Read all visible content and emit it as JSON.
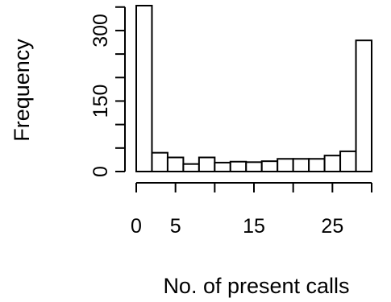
{
  "chart_data": {
    "type": "bar",
    "xlabel": "No. of present calls",
    "ylabel": "Frequency",
    "x_bin_edges": [
      0,
      2,
      4,
      6,
      8,
      10,
      12,
      14,
      16,
      18,
      20,
      22,
      24,
      26,
      28,
      30
    ],
    "values": [
      353,
      40,
      30,
      16,
      30,
      19,
      21,
      20,
      22,
      27,
      27,
      27,
      34,
      43,
      279
    ],
    "xlim": [
      0,
      30
    ],
    "ylim": [
      0,
      353
    ],
    "x_ticks": [
      0,
      5,
      10,
      15,
      20,
      25,
      30
    ],
    "x_tick_labels": [
      "0",
      "5",
      "15",
      "25"
    ],
    "x_labeled_ticks": [
      0,
      5,
      15,
      25
    ],
    "y_ticks": [
      0,
      50,
      100,
      150,
      200,
      250,
      300,
      350
    ],
    "y_tick_labels": [
      "0",
      "150",
      "300"
    ],
    "y_labeled_ticks": [
      0,
      150,
      300
    ],
    "grid": false,
    "legend": "none"
  }
}
